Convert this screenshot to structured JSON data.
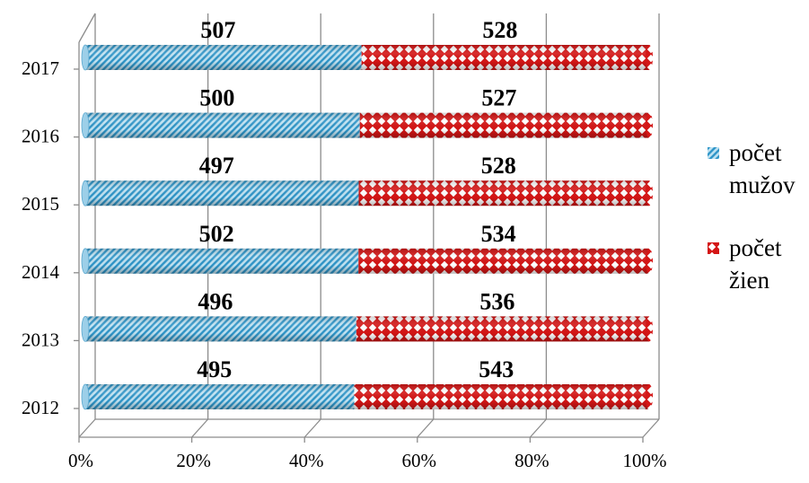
{
  "chart_data": {
    "type": "bar",
    "orientation": "horizontal",
    "stacking": "percent",
    "categories": [
      "2012",
      "2013",
      "2014",
      "2015",
      "2016",
      "2017"
    ],
    "series": [
      {
        "name": "počet mužov",
        "values": [
          495,
          496,
          502,
          497,
          500,
          507
        ],
        "color": "#3aa0d0",
        "pattern": "diagonal-stripes"
      },
      {
        "name": "počet žien",
        "values": [
          543,
          536,
          534,
          528,
          527,
          528
        ],
        "color": "#e02020",
        "pattern": "diamond-dots"
      }
    ],
    "x_ticks": [
      "0%",
      "20%",
      "40%",
      "60%",
      "80%",
      "100%"
    ],
    "xlim": [
      0,
      100
    ],
    "legend_position": "right",
    "grid": true,
    "title": "",
    "xlabel": "",
    "ylabel": ""
  }
}
